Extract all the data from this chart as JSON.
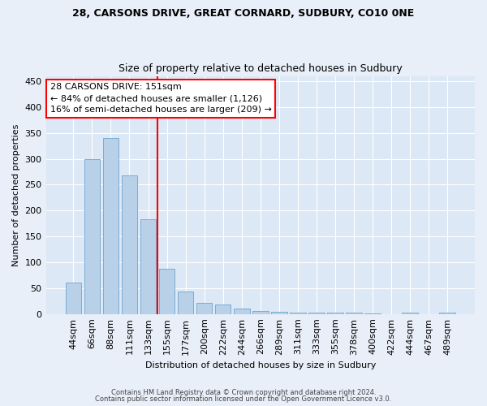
{
  "title1": "28, CARSONS DRIVE, GREAT CORNARD, SUDBURY, CO10 0NE",
  "title2": "Size of property relative to detached houses in Sudbury",
  "xlabel": "Distribution of detached houses by size in Sudbury",
  "ylabel": "Number of detached properties",
  "categories": [
    "44sqm",
    "66sqm",
    "88sqm",
    "111sqm",
    "133sqm",
    "155sqm",
    "177sqm",
    "200sqm",
    "222sqm",
    "244sqm",
    "266sqm",
    "289sqm",
    "311sqm",
    "333sqm",
    "355sqm",
    "378sqm",
    "400sqm",
    "422sqm",
    "444sqm",
    "467sqm",
    "489sqm"
  ],
  "values": [
    60,
    300,
    340,
    268,
    183,
    88,
    44,
    22,
    18,
    10,
    5,
    4,
    3,
    3,
    3,
    2,
    1,
    0,
    2,
    0,
    2
  ],
  "bar_color": "#b8d0e8",
  "bar_edge_color": "#7aadd4",
  "vline_x": 4.5,
  "annotation_line1": "28 CARSONS DRIVE: 151sqm",
  "annotation_line2": "← 84% of detached houses are smaller (1,126)",
  "annotation_line3": "16% of semi-detached houses are larger (209) →",
  "footer1": "Contains HM Land Registry data © Crown copyright and database right 2024.",
  "footer2": "Contains public sector information licensed under the Open Government Licence v3.0.",
  "bg_color": "#e8eff8",
  "plot_bg_color": "#dce8f5",
  "ylim": [
    0,
    460
  ],
  "yticks": [
    0,
    50,
    100,
    150,
    200,
    250,
    300,
    350,
    400,
    450
  ],
  "title1_fontsize": 9,
  "title2_fontsize": 9,
  "xlabel_fontsize": 8,
  "ylabel_fontsize": 8,
  "tick_fontsize": 8,
  "annot_fontsize": 8,
  "footer_fontsize": 6
}
